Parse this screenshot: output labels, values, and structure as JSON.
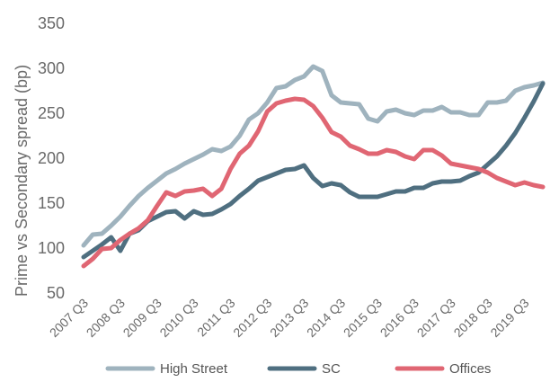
{
  "chart_data": {
    "type": "line",
    "ylabel": "Prime vs Secondary spread (bp)",
    "ylim": [
      50,
      350
    ],
    "yticks": [
      50,
      100,
      150,
      200,
      250,
      300,
      350
    ],
    "x_tick_labels": [
      "2007 Q3",
      "2008 Q3",
      "2009 Q3",
      "2010 Q3",
      "2011 Q3",
      "2012 Q3",
      "2013 Q3",
      "2014 Q3",
      "2015 Q3",
      "2016 Q3",
      "2017 Q3",
      "2018 Q3",
      "2019 Q3"
    ],
    "x": [
      "2007 Q3",
      "2007 Q4",
      "2008 Q1",
      "2008 Q2",
      "2008 Q3",
      "2008 Q4",
      "2009 Q1",
      "2009 Q2",
      "2009 Q3",
      "2009 Q4",
      "2010 Q1",
      "2010 Q2",
      "2010 Q3",
      "2010 Q4",
      "2011 Q1",
      "2011 Q2",
      "2011 Q3",
      "2011 Q4",
      "2012 Q1",
      "2012 Q2",
      "2012 Q3",
      "2012 Q4",
      "2013 Q1",
      "2013 Q2",
      "2013 Q3",
      "2013 Q4",
      "2014 Q1",
      "2014 Q2",
      "2014 Q3",
      "2014 Q4",
      "2015 Q1",
      "2015 Q2",
      "2015 Q3",
      "2015 Q4",
      "2016 Q1",
      "2016 Q2",
      "2016 Q3",
      "2016 Q4",
      "2017 Q1",
      "2017 Q2",
      "2017 Q3",
      "2017 Q4",
      "2018 Q1",
      "2018 Q2",
      "2018 Q3",
      "2018 Q4",
      "2019 Q1",
      "2019 Q2",
      "2019 Q3",
      "2019 Q4",
      "2020 Q1"
    ],
    "series": [
      {
        "name": "High Street",
        "color": "#9fb3be",
        "values": [
          103,
          115,
          116,
          125,
          135,
          147,
          158,
          167,
          175,
          183,
          188,
          194,
          199,
          204,
          210,
          208,
          213,
          225,
          243,
          250,
          262,
          278,
          280,
          287,
          291,
          302,
          297,
          270,
          262,
          261,
          260,
          244,
          241,
          252,
          254,
          250,
          248,
          253,
          253,
          257,
          251,
          251,
          248,
          248,
          262,
          262,
          264,
          275,
          279,
          281,
          284
        ]
      },
      {
        "name": "SC",
        "color": "#4f6f80",
        "values": [
          90,
          97,
          104,
          112,
          97,
          116,
          120,
          130,
          135,
          140,
          141,
          133,
          141,
          137,
          138,
          143,
          149,
          158,
          166,
          175,
          179,
          183,
          187,
          188,
          192,
          178,
          169,
          172,
          170,
          162,
          157,
          157,
          157,
          160,
          163,
          163,
          167,
          167,
          172,
          174,
          174,
          175,
          180,
          184,
          193,
          202,
          214,
          228,
          245,
          263,
          283
        ]
      },
      {
        "name": "Offices",
        "color": "#e06673",
        "values": [
          80,
          88,
          99,
          100,
          109,
          116,
          122,
          131,
          147,
          162,
          158,
          163,
          164,
          166,
          158,
          166,
          188,
          205,
          214,
          230,
          252,
          261,
          264,
          266,
          265,
          258,
          245,
          229,
          224,
          214,
          210,
          205,
          205,
          209,
          207,
          202,
          199,
          209,
          209,
          203,
          194,
          192,
          190,
          188,
          184,
          178,
          174,
          170,
          173,
          170,
          168
        ]
      }
    ],
    "legend": {
      "position": "bottom",
      "entries": [
        "High Street",
        "SC",
        "Offices"
      ]
    },
    "grid": false
  }
}
